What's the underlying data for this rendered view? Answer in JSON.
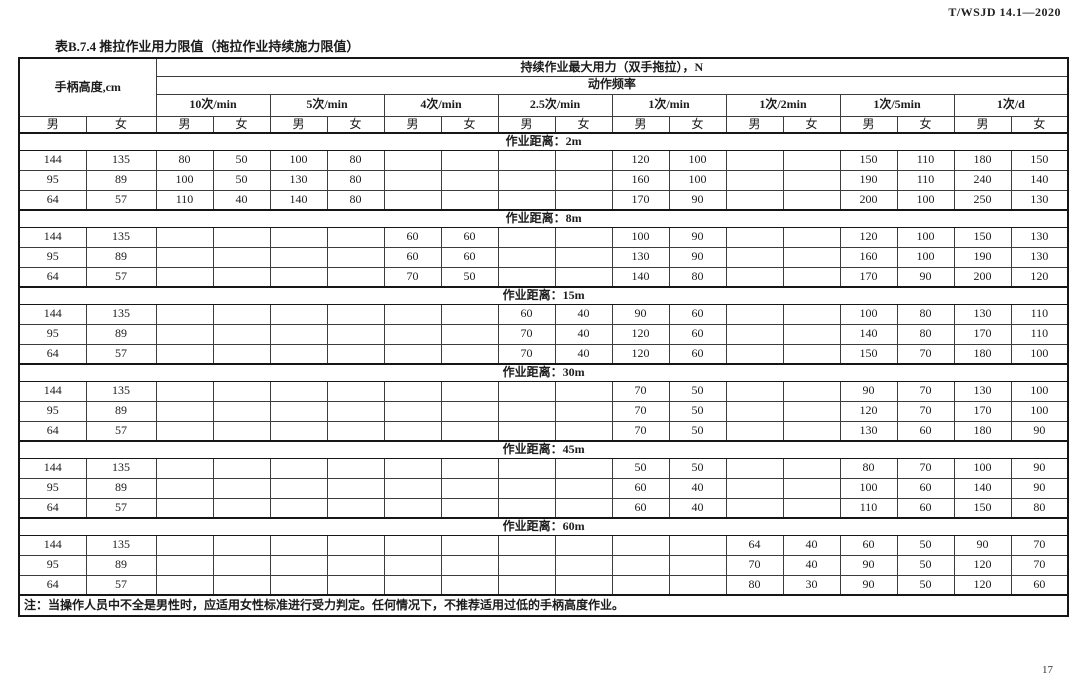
{
  "page": {
    "doc_number": "T/WSJD 14.1—2020",
    "page_number": "17"
  },
  "table": {
    "title": "表B.7.4 推拉作业用力限值（拖拉作业持续施力限值）",
    "header": {
      "handle_height": "手柄高度,cm",
      "max_force": "持续作业最大用力（双手拖拉），N",
      "action_frequency": "动作频率",
      "frequencies": [
        "10次/min",
        "5次/min",
        "4次/min",
        "2.5次/min",
        "1次/min",
        "1次/2min",
        "1次/5min",
        "1次/d"
      ],
      "male": "男",
      "female": "女"
    },
    "sections": [
      {
        "label": "作业距离：2m",
        "rows": [
          [
            "144",
            "135",
            "80",
            "50",
            "100",
            "80",
            "",
            "",
            "",
            "",
            "120",
            "100",
            "",
            "",
            "150",
            "110",
            "180",
            "150"
          ],
          [
            "95",
            "89",
            "100",
            "50",
            "130",
            "80",
            "",
            "",
            "",
            "",
            "160",
            "100",
            "",
            "",
            "190",
            "110",
            "240",
            "140"
          ],
          [
            "64",
            "57",
            "110",
            "40",
            "140",
            "80",
            "",
            "",
            "",
            "",
            "170",
            "90",
            "",
            "",
            "200",
            "100",
            "250",
            "130"
          ]
        ]
      },
      {
        "label": "作业距离：8m",
        "rows": [
          [
            "144",
            "135",
            "",
            "",
            "",
            "",
            "60",
            "60",
            "",
            "",
            "100",
            "90",
            "",
            "",
            "120",
            "100",
            "150",
            "130"
          ],
          [
            "95",
            "89",
            "",
            "",
            "",
            "",
            "60",
            "60",
            "",
            "",
            "130",
            "90",
            "",
            "",
            "160",
            "100",
            "190",
            "130"
          ],
          [
            "64",
            "57",
            "",
            "",
            "",
            "",
            "70",
            "50",
            "",
            "",
            "140",
            "80",
            "",
            "",
            "170",
            "90",
            "200",
            "120"
          ]
        ]
      },
      {
        "label": "作业距离：15m",
        "rows": [
          [
            "144",
            "135",
            "",
            "",
            "",
            "",
            "",
            "",
            "60",
            "40",
            "90",
            "60",
            "",
            "",
            "100",
            "80",
            "130",
            "110"
          ],
          [
            "95",
            "89",
            "",
            "",
            "",
            "",
            "",
            "",
            "70",
            "40",
            "120",
            "60",
            "",
            "",
            "140",
            "80",
            "170",
            "110"
          ],
          [
            "64",
            "57",
            "",
            "",
            "",
            "",
            "",
            "",
            "70",
            "40",
            "120",
            "60",
            "",
            "",
            "150",
            "70",
            "180",
            "100"
          ]
        ]
      },
      {
        "label": "作业距离：30m",
        "rows": [
          [
            "144",
            "135",
            "",
            "",
            "",
            "",
            "",
            "",
            "",
            "",
            "70",
            "50",
            "",
            "",
            "90",
            "70",
            "130",
            "100"
          ],
          [
            "95",
            "89",
            "",
            "",
            "",
            "",
            "",
            "",
            "",
            "",
            "70",
            "50",
            "",
            "",
            "120",
            "70",
            "170",
            "100"
          ],
          [
            "64",
            "57",
            "",
            "",
            "",
            "",
            "",
            "",
            "",
            "",
            "70",
            "50",
            "",
            "",
            "130",
            "60",
            "180",
            "90"
          ]
        ]
      },
      {
        "label": "作业距离：45m",
        "rows": [
          [
            "144",
            "135",
            "",
            "",
            "",
            "",
            "",
            "",
            "",
            "",
            "50",
            "50",
            "",
            "",
            "80",
            "70",
            "100",
            "90"
          ],
          [
            "95",
            "89",
            "",
            "",
            "",
            "",
            "",
            "",
            "",
            "",
            "60",
            "40",
            "",
            "",
            "100",
            "60",
            "140",
            "90"
          ],
          [
            "64",
            "57",
            "",
            "",
            "",
            "",
            "",
            "",
            "",
            "",
            "60",
            "40",
            "",
            "",
            "110",
            "60",
            "150",
            "80"
          ]
        ]
      },
      {
        "label": "作业距离：60m",
        "rows": [
          [
            "144",
            "135",
            "",
            "",
            "",
            "",
            "",
            "",
            "",
            "",
            "",
            "",
            "64",
            "40",
            "60",
            "50",
            "90",
            "70"
          ],
          [
            "95",
            "89",
            "",
            "",
            "",
            "",
            "",
            "",
            "",
            "",
            "",
            "",
            "70",
            "40",
            "90",
            "50",
            "120",
            "70"
          ],
          [
            "64",
            "57",
            "",
            "",
            "",
            "",
            "",
            "",
            "",
            "",
            "",
            "",
            "80",
            "30",
            "90",
            "50",
            "120",
            "60"
          ]
        ]
      }
    ],
    "note": "注：当操作人员中不全是男性时，应适用女性标准进行受力判定。任何情况下，不推荐适用过低的手柄高度作业。"
  }
}
